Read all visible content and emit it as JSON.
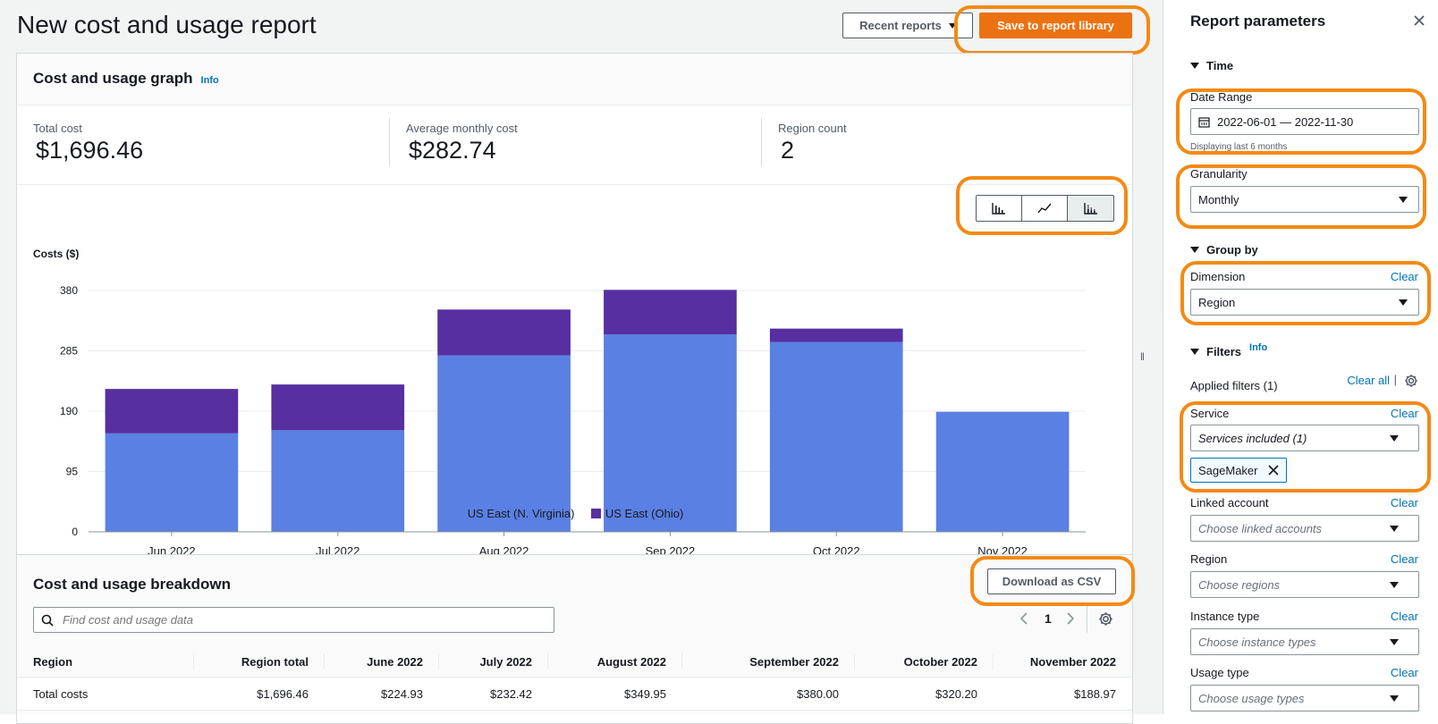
{
  "page": {
    "title": "New cost and usage report"
  },
  "header": {
    "recent_reports": "Recent reports",
    "save_button": "Save to report library"
  },
  "graph_card": {
    "title": "Cost and usage graph",
    "info": "Info",
    "metrics": [
      {
        "label": "Total cost",
        "value": "$1,696.46"
      },
      {
        "label": "Average monthly cost",
        "value": "$282.74"
      },
      {
        "label": "Region count",
        "value": "2"
      }
    ],
    "chart_type_buttons": [
      "bar-chart-icon",
      "line-chart-icon",
      "stacked-bar-chart-icon"
    ],
    "active_chart_type": 2
  },
  "chart_data": {
    "type": "bar",
    "stacked": true,
    "ylabel": "Costs ($)",
    "yticks": [
      0,
      95,
      190,
      285,
      380
    ],
    "ylim": [
      0,
      380
    ],
    "categories": [
      "Jun 2022",
      "Jul 2022",
      "Aug 2022",
      "Sep 2022",
      "Oct 2022",
      "Nov 2022"
    ],
    "series": [
      {
        "name": "US East (N. Virginia)",
        "color": "#5b80e3",
        "values": [
          155,
          160,
          278,
          311,
          299,
          189
        ]
      },
      {
        "name": "US East (Ohio)",
        "color": "#572fa0",
        "values": [
          70,
          72,
          72,
          70,
          21,
          0
        ]
      }
    ],
    "grid": true,
    "legend": "bottom-center"
  },
  "breakdown": {
    "title": "Cost and usage breakdown",
    "download_button": "Download as CSV",
    "search_placeholder": "Find cost and usage data",
    "page": "1",
    "columns": [
      "Region",
      "Region total",
      "June 2022",
      "July 2022",
      "August 2022",
      "September 2022",
      "October 2022",
      "November 2022"
    ],
    "rows": [
      [
        "Total costs",
        "$1,696.46",
        "$224.93",
        "$232.42",
        "$349.95",
        "$380.00",
        "$320.20",
        "$188.97"
      ]
    ]
  },
  "panel": {
    "title": "Report parameters",
    "time_section": "Time",
    "date_range_label": "Date Range",
    "date_range_value": "2022-06-01 — 2022-11-30",
    "date_range_hint": "Displaying last 6 months",
    "granularity_label": "Granularity",
    "granularity_value": "Monthly",
    "group_section": "Group by",
    "dimension_label": "Dimension",
    "dimension_value": "Region",
    "clear": "Clear",
    "filters_section": "Filters",
    "filters_info": "Info",
    "applied_filters": "Applied filters (1)",
    "clear_all": "Clear all",
    "service_label": "Service",
    "service_value": "Services included (1)",
    "service_token": "SageMaker",
    "linked_label": "Linked account",
    "linked_placeholder": "Choose linked accounts",
    "region_label": "Region",
    "region_placeholder": "Choose regions",
    "instance_label": "Instance type",
    "instance_placeholder": "Choose instance types",
    "usage_label": "Usage type",
    "usage_placeholder": "Choose usage types"
  }
}
